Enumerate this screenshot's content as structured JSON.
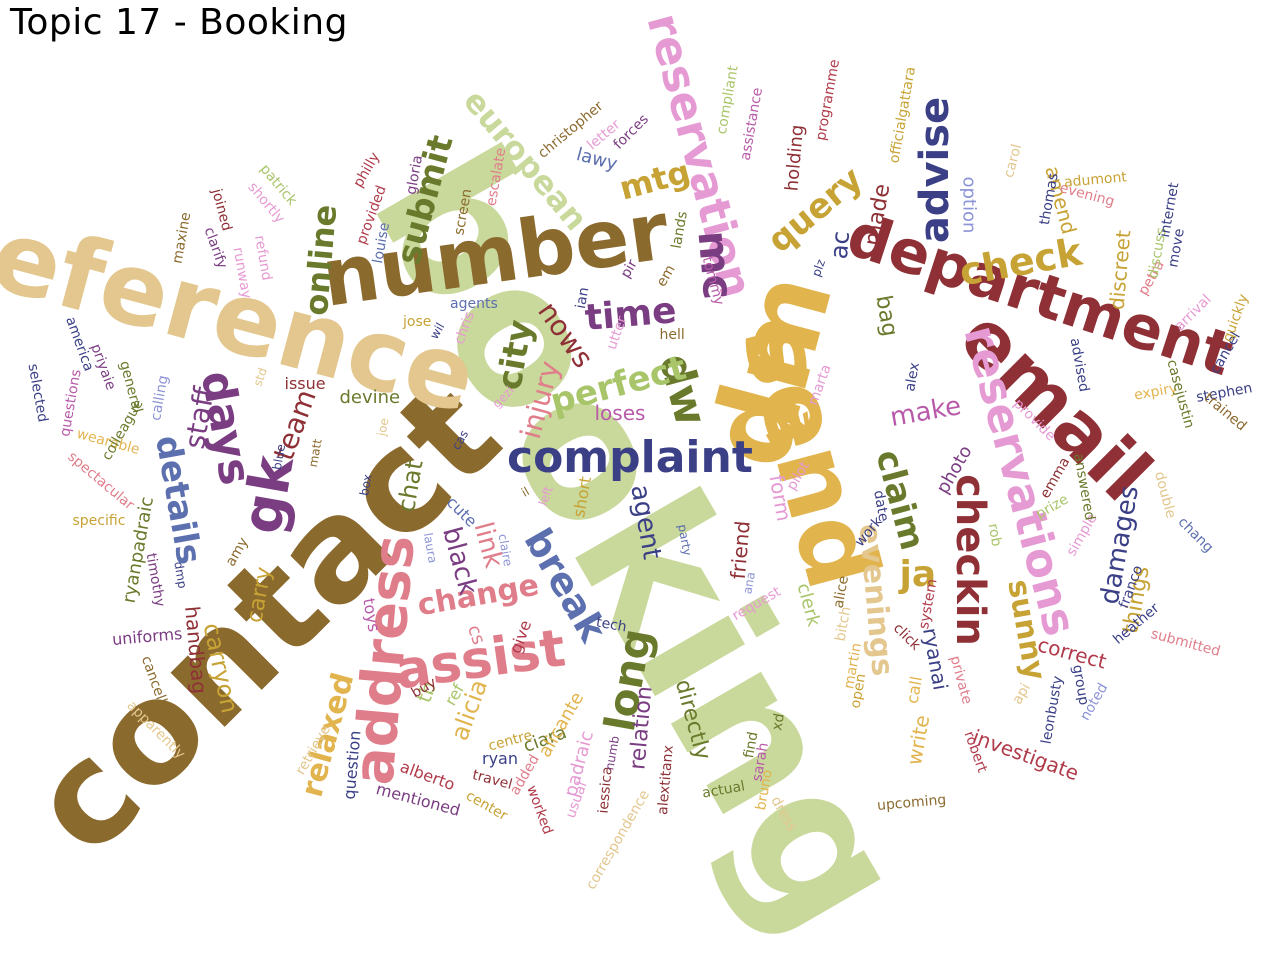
{
  "title": "Topic 17 - Booking",
  "palette": {
    "brown": "#8b6a2e",
    "sage": "#c9d89b",
    "tan": "#e3c78e",
    "gold": "#e2b44e",
    "maroon": "#8e3035",
    "navy": "#3a3f86",
    "rose": "#e07d8a",
    "pink": "#e69ad3",
    "violet": "#7a3d82",
    "olive": "#6a7a2c",
    "mustard": "#c7a234",
    "lime": "#a9c56a",
    "crimson": "#b03a4a",
    "periwinkle": "#8c93d6",
    "magenta": "#b85aa9",
    "slate": "#5c6fae"
  },
  "words": [
    {
      "text": "booking",
      "color": "sage"
    },
    {
      "text": "contact",
      "color": "brown"
    },
    {
      "text": "reference",
      "color": "tan"
    },
    {
      "text": "send",
      "color": "gold"
    },
    {
      "text": "dm",
      "color": "gold"
    },
    {
      "text": "number",
      "color": "brown"
    },
    {
      "text": "email",
      "color": "maroon"
    },
    {
      "text": "department",
      "color": "maroon"
    },
    {
      "text": "address",
      "color": "rose"
    },
    {
      "text": "reservation",
      "color": "pink"
    },
    {
      "text": "reservations",
      "color": "pink"
    },
    {
      "text": "assist",
      "color": "rose"
    },
    {
      "text": "complaint",
      "color": "navy"
    },
    {
      "text": "gk",
      "color": "violet"
    },
    {
      "text": "days",
      "color": "violet"
    },
    {
      "text": "details",
      "color": "slate"
    },
    {
      "text": "checkin",
      "color": "maroon"
    },
    {
      "text": "check",
      "color": "mustard"
    },
    {
      "text": "advise",
      "color": "navy"
    },
    {
      "text": "european",
      "color": "sage"
    },
    {
      "text": "submit",
      "color": "olive"
    },
    {
      "text": "mc",
      "color": "violet"
    },
    {
      "text": "dw",
      "color": "olive"
    },
    {
      "text": "time",
      "color": "violet"
    },
    {
      "text": "perfect",
      "color": "lime"
    },
    {
      "text": "break",
      "color": "slate"
    },
    {
      "text": "long",
      "color": "olive"
    },
    {
      "text": "city",
      "color": "olive"
    },
    {
      "text": "nows",
      "color": "maroon"
    },
    {
      "text": "query",
      "color": "mustard"
    },
    {
      "text": "online",
      "color": "olive"
    },
    {
      "text": "mtg",
      "color": "mustard"
    },
    {
      "text": "claim",
      "color": "olive"
    },
    {
      "text": "evenings",
      "color": "tan"
    },
    {
      "text": "ja",
      "color": "mustard"
    },
    {
      "text": "sunny",
      "color": "mustard"
    },
    {
      "text": "damages",
      "color": "navy"
    },
    {
      "text": "relaxed",
      "color": "gold"
    },
    {
      "text": "change",
      "color": "rose"
    },
    {
      "text": "make",
      "color": "magenta"
    },
    {
      "text": "mv",
      "color": "gold"
    },
    {
      "text": "agent",
      "color": "navy"
    },
    {
      "text": "injury",
      "color": "rose"
    },
    {
      "text": "staff",
      "color": "violet"
    },
    {
      "text": "team",
      "color": "maroon"
    },
    {
      "text": "chat",
      "color": "olive"
    },
    {
      "text": "link",
      "color": "rose"
    },
    {
      "text": "black",
      "color": "violet"
    },
    {
      "text": "handbag",
      "color": "maroon"
    },
    {
      "text": "carryon",
      "color": "mustard"
    },
    {
      "text": "carry",
      "color": "mustard"
    },
    {
      "text": "relation",
      "color": "violet"
    },
    {
      "text": "directly",
      "color": "olive"
    },
    {
      "text": "alicia",
      "color": "gold"
    },
    {
      "text": "ryanai",
      "color": "navy"
    },
    {
      "text": "friend",
      "color": "maroon"
    },
    {
      "text": "form",
      "color": "pink"
    },
    {
      "text": "things",
      "color": "mustard"
    },
    {
      "text": "correct",
      "color": "crimson"
    },
    {
      "text": "investigate",
      "color": "crimson"
    },
    {
      "text": "photo",
      "color": "violet"
    },
    {
      "text": "made",
      "color": "maroon"
    },
    {
      "text": "ac",
      "color": "navy"
    },
    {
      "text": "bag",
      "color": "olive"
    },
    {
      "text": "holding",
      "color": "maroon"
    },
    {
      "text": "amend",
      "color": "mustard"
    },
    {
      "text": "discreet",
      "color": "mustard"
    },
    {
      "text": "lawy",
      "color": "slate"
    },
    {
      "text": "loses",
      "color": "magenta"
    },
    {
      "text": "devine",
      "color": "olive"
    },
    {
      "text": "issue",
      "color": "maroon"
    },
    {
      "text": "option",
      "color": "periwinkle"
    },
    {
      "text": "cs",
      "color": "rose"
    },
    {
      "text": "tb",
      "color": "lime"
    },
    {
      "text": "ref",
      "color": "lime"
    },
    {
      "text": "ciara",
      "color": "olive"
    },
    {
      "text": "alicante",
      "color": "gold"
    },
    {
      "text": "padraic",
      "color": "pink"
    },
    {
      "text": "write",
      "color": "gold"
    },
    {
      "text": "call",
      "color": "gold"
    },
    {
      "text": "clerk",
      "color": "lime"
    },
    {
      "text": "short",
      "color": "mustard"
    },
    {
      "text": "cute",
      "color": "slate"
    },
    {
      "text": "toys",
      "color": "magenta"
    },
    {
      "text": "uniforms",
      "color": "violet"
    },
    {
      "text": "ryanpadraic",
      "color": "olive"
    },
    {
      "text": "give",
      "color": "crimson"
    },
    {
      "text": "ryan",
      "color": "navy"
    },
    {
      "text": "travel",
      "color": "maroon"
    },
    {
      "text": "alberto",
      "color": "crimson"
    },
    {
      "text": "question",
      "color": "navy"
    },
    {
      "text": "mentioned",
      "color": "violet"
    },
    {
      "text": "centre",
      "color": "mustard"
    },
    {
      "text": "center",
      "color": "mustard"
    },
    {
      "text": "worked",
      "color": "crimson"
    },
    {
      "text": "added",
      "color": "rose"
    },
    {
      "text": "usual",
      "color": "pink"
    },
    {
      "text": "iessica",
      "color": "maroon"
    },
    {
      "text": "numb",
      "color": "violet"
    },
    {
      "text": "correspondence",
      "color": "tan"
    },
    {
      "text": "alextitanx",
      "color": "maroon"
    },
    {
      "text": "actual",
      "color": "olive"
    },
    {
      "text": "bruno",
      "color": "gold"
    },
    {
      "text": "sarah",
      "color": "magenta"
    },
    {
      "text": "xd",
      "color": "olive"
    },
    {
      "text": "find",
      "color": "olive"
    },
    {
      "text": "dress",
      "color": "tan"
    },
    {
      "text": "upcoming",
      "color": "brown"
    },
    {
      "text": "robert",
      "color": "crimson"
    },
    {
      "text": "private",
      "color": "rose"
    },
    {
      "text": "system",
      "color": "crimson"
    },
    {
      "text": "open",
      "color": "mustard"
    },
    {
      "text": "martin",
      "color": "gold"
    },
    {
      "text": "bitch",
      "color": "tan"
    },
    {
      "text": "alice",
      "color": "brown"
    },
    {
      "text": "click",
      "color": "maroon"
    },
    {
      "text": "work",
      "color": "navy"
    },
    {
      "text": "date",
      "color": "navy"
    },
    {
      "text": "pilot",
      "color": "pink"
    },
    {
      "text": "rob",
      "color": "lime"
    },
    {
      "text": "emma",
      "color": "maroon"
    },
    {
      "text": "prize",
      "color": "lime"
    },
    {
      "text": "simple",
      "color": "pink"
    },
    {
      "text": "heather",
      "color": "navy"
    },
    {
      "text": "franco",
      "color": "navy"
    },
    {
      "text": "submitted",
      "color": "rose"
    },
    {
      "text": "chang",
      "color": "slate"
    },
    {
      "text": "double",
      "color": "tan"
    },
    {
      "text": "answered",
      "color": "olive"
    },
    {
      "text": "leonbusty",
      "color": "navy"
    },
    {
      "text": "group",
      "color": "navy"
    },
    {
      "text": "noted",
      "color": "periwinkle"
    },
    {
      "text": "api",
      "color": "tan"
    },
    {
      "text": "provide",
      "color": "pink"
    },
    {
      "text": "expiry",
      "color": "gold"
    },
    {
      "text": "advised",
      "color": "navy"
    },
    {
      "text": "casejustin",
      "color": "olive"
    },
    {
      "text": "stephen",
      "color": "navy"
    },
    {
      "text": "trained",
      "color": "brown"
    },
    {
      "text": "cancel",
      "color": "navy"
    },
    {
      "text": "quickly",
      "color": "mustard"
    },
    {
      "text": "arrival",
      "color": "pink"
    },
    {
      "text": "petra",
      "color": "rose"
    },
    {
      "text": "discuss",
      "color": "lime"
    },
    {
      "text": "move",
      "color": "navy"
    },
    {
      "text": "internet",
      "color": "navy"
    },
    {
      "text": "evening",
      "color": "rose"
    },
    {
      "text": "adumont",
      "color": "mustard"
    },
    {
      "text": "carol",
      "color": "tan"
    },
    {
      "text": "thomas",
      "color": "navy"
    },
    {
      "text": "officialgattara",
      "color": "mustard"
    },
    {
      "text": "programme",
      "color": "crimson"
    },
    {
      "text": "assistance",
      "color": "magenta"
    },
    {
      "text": "compliant",
      "color": "lime"
    },
    {
      "text": "tommy",
      "color": "magenta"
    },
    {
      "text": "lands",
      "color": "olive"
    },
    {
      "text": "forces",
      "color": "violet"
    },
    {
      "text": "letter",
      "color": "pink"
    },
    {
      "text": "christopher",
      "color": "brown"
    },
    {
      "text": "escalate",
      "color": "rose"
    },
    {
      "text": "screen",
      "color": "brown"
    },
    {
      "text": "gloria",
      "color": "violet"
    },
    {
      "text": "philly",
      "color": "crimson"
    },
    {
      "text": "provided",
      "color": "crimson"
    },
    {
      "text": "louise",
      "color": "slate"
    },
    {
      "text": "patrick",
      "color": "lime"
    },
    {
      "text": "shortly",
      "color": "pink"
    },
    {
      "text": "joined",
      "color": "maroon"
    },
    {
      "text": "clarify",
      "color": "violet"
    },
    {
      "text": "refund",
      "color": "pink"
    },
    {
      "text": "runway",
      "color": "pink"
    },
    {
      "text": "maxine",
      "color": "brown"
    },
    {
      "text": "pir",
      "color": "violet"
    },
    {
      "text": "em",
      "color": "brown"
    },
    {
      "text": "wil",
      "color": "navy"
    },
    {
      "text": "agents",
      "color": "slate"
    },
    {
      "text": "ian",
      "color": "navy"
    },
    {
      "text": "jose",
      "color": "mustard"
    },
    {
      "text": "chris",
      "color": "pink"
    },
    {
      "text": "utter",
      "color": "pink"
    },
    {
      "text": "hell",
      "color": "brown"
    },
    {
      "text": "plz",
      "color": "navy"
    },
    {
      "text": "alex",
      "color": "navy"
    },
    {
      "text": "marta",
      "color": "pink"
    },
    {
      "text": "gezi",
      "color": "pink"
    },
    {
      "text": "cas",
      "color": "navy"
    },
    {
      "text": "joe",
      "color": "tan"
    },
    {
      "text": "std",
      "color": "tan"
    },
    {
      "text": "matt",
      "color": "brown"
    },
    {
      "text": "blue",
      "color": "navy"
    },
    {
      "text": "box",
      "color": "navy"
    },
    {
      "text": "il",
      "color": "brown"
    },
    {
      "text": "left",
      "color": "pink"
    },
    {
      "text": "claire",
      "color": "periwinkle"
    },
    {
      "text": "laura",
      "color": "periwinkle"
    },
    {
      "text": "party",
      "color": "slate"
    },
    {
      "text": "ana",
      "color": "periwinkle"
    },
    {
      "text": "request",
      "color": "pink"
    },
    {
      "text": "tech",
      "color": "navy"
    },
    {
      "text": "buy",
      "color": "maroon"
    },
    {
      "text": "retrieve",
      "color": "tan"
    },
    {
      "text": "apparently",
      "color": "tan"
    },
    {
      "text": "cancelling",
      "color": "brown"
    },
    {
      "text": "amy",
      "color": "brown"
    },
    {
      "text": "timothy",
      "color": "violet"
    },
    {
      "text": "dmp",
      "color": "navy"
    },
    {
      "text": "specific",
      "color": "mustard"
    },
    {
      "text": "spectacular",
      "color": "rose"
    },
    {
      "text": "wearable",
      "color": "gold"
    },
    {
      "text": "colleague",
      "color": "olive"
    },
    {
      "text": "general",
      "color": "olive"
    },
    {
      "text": "calling",
      "color": "periwinkle"
    },
    {
      "text": "questions",
      "color": "magenta"
    },
    {
      "text": "priyaie",
      "color": "violet"
    },
    {
      "text": "america",
      "color": "navy"
    },
    {
      "text": "selected",
      "color": "navy"
    }
  ]
}
